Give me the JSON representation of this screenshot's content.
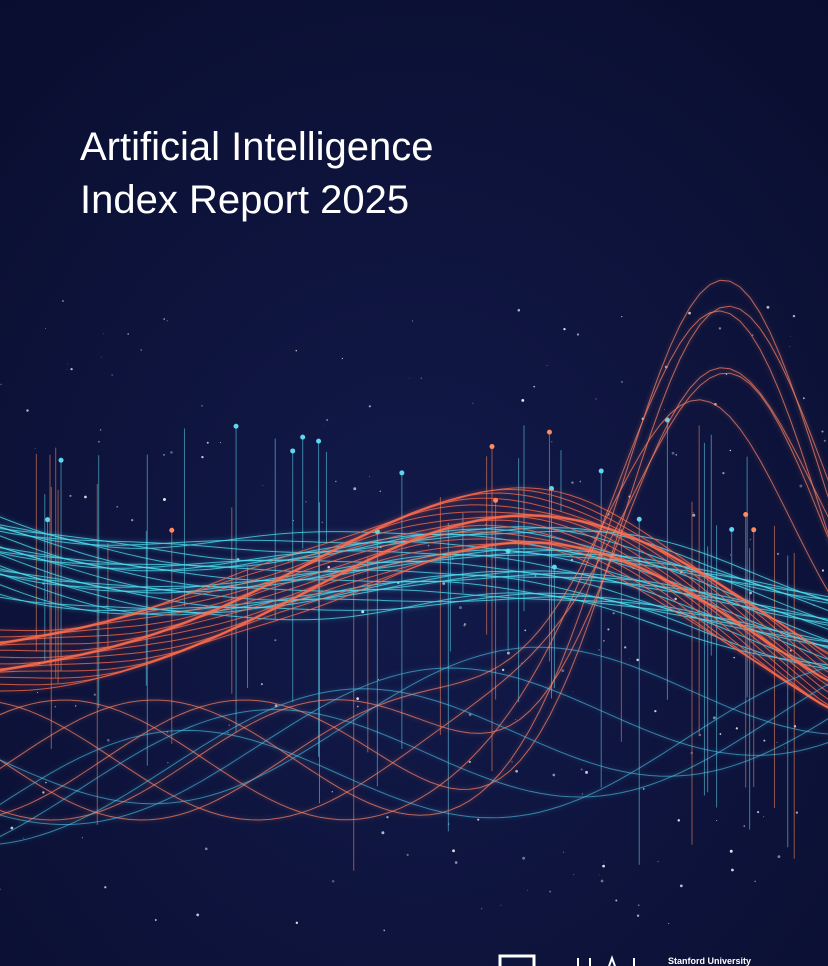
{
  "cover": {
    "title_lines": [
      "Artificial Intelligence",
      "Index Report 2025"
    ],
    "publisher": "Stanford University"
  }
}
